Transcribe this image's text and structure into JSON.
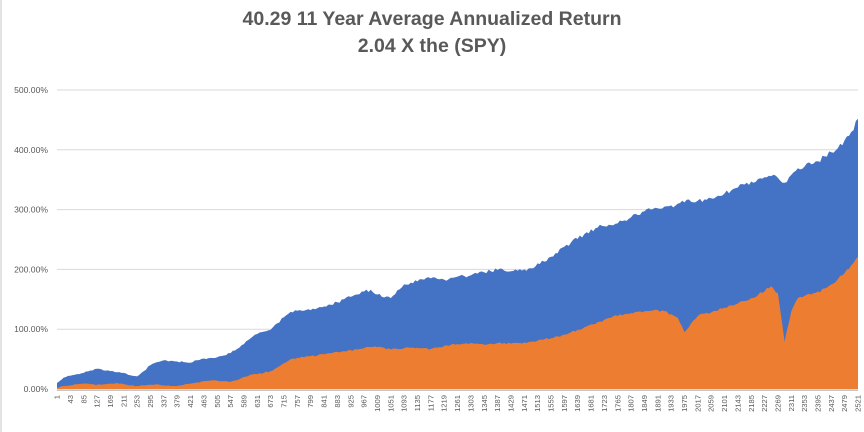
{
  "title": {
    "line1": "40.29 11 Year Average Annualized Return",
    "line2": "2.04 X the (SPY)",
    "color": "#595959"
  },
  "chart_data": {
    "type": "area",
    "title": "40.29 11 Year Average Annualized Return",
    "subtitle": "2.04 X the (SPY)",
    "legend": "none",
    "grid": true,
    "ylim": [
      0,
      500
    ],
    "y_tick_labels": [
      "0.00%",
      "100.00%",
      "200.00%",
      "300.00%",
      "400.00%",
      "500.00%"
    ],
    "x_tick_labels": [
      1,
      43,
      85,
      127,
      169,
      211,
      253,
      295,
      337,
      379,
      421,
      463,
      505,
      547,
      589,
      631,
      673,
      715,
      757,
      799,
      841,
      883,
      925,
      967,
      1009,
      1051,
      1093,
      1135,
      1177,
      1219,
      1261,
      1303,
      1345,
      1387,
      1429,
      1471,
      1513,
      1555,
      1597,
      1639,
      1681,
      1723,
      1765,
      1807,
      1849,
      1891,
      1933,
      1975,
      2017,
      2059,
      2101,
      2143,
      2185,
      2227,
      2269,
      2311,
      2353,
      2395,
      2437,
      2479,
      2521
    ],
    "x": [
      1,
      22,
      43,
      64,
      85,
      106,
      127,
      148,
      169,
      190,
      211,
      232,
      253,
      274,
      295,
      316,
      337,
      358,
      379,
      400,
      421,
      442,
      463,
      484,
      505,
      526,
      547,
      568,
      589,
      610,
      631,
      652,
      673,
      694,
      715,
      736,
      757,
      778,
      799,
      820,
      841,
      862,
      883,
      904,
      925,
      946,
      967,
      988,
      1009,
      1030,
      1051,
      1072,
      1093,
      1114,
      1135,
      1156,
      1177,
      1198,
      1219,
      1240,
      1261,
      1282,
      1303,
      1324,
      1345,
      1366,
      1387,
      1408,
      1429,
      1450,
      1471,
      1492,
      1513,
      1534,
      1555,
      1576,
      1597,
      1618,
      1639,
      1660,
      1681,
      1702,
      1723,
      1744,
      1765,
      1786,
      1807,
      1828,
      1849,
      1870,
      1891,
      1912,
      1933,
      1954,
      1975,
      1996,
      2017,
      2038,
      2059,
      2080,
      2101,
      2122,
      2143,
      2164,
      2185,
      2206,
      2227,
      2248,
      2269,
      2290,
      2311,
      2332,
      2353,
      2374,
      2395,
      2416,
      2437,
      2458,
      2479,
      2500,
      2521
    ],
    "series": [
      {
        "name": "blue-series",
        "color": "#4472C4",
        "values_pct": [
          10,
          19,
          22,
          25,
          27,
          31,
          34,
          31,
          30,
          28,
          27,
          23,
          21,
          30,
          40,
          45,
          48,
          47,
          46,
          45,
          44,
          48,
          51,
          52,
          53,
          56,
          60,
          67,
          75,
          85,
          92,
          96,
          99,
          110,
          120,
          129,
          131,
          131,
          132,
          135,
          138,
          141,
          145,
          150,
          154,
          158,
          163,
          166,
          158,
          153,
          152,
          165,
          175,
          178,
          180,
          183,
          185,
          184,
          183,
          186,
          188,
          189,
          190,
          193,
          195,
          197,
          199,
          198,
          197,
          198,
          200,
          202,
          210,
          213,
          221,
          227,
          238,
          245,
          251,
          259,
          267,
          270,
          272,
          274,
          277,
          282,
          287,
          291,
          297,
          300,
          302,
          305,
          307,
          310,
          312,
          313,
          315,
          317,
          319,
          323,
          327,
          332,
          337,
          342,
          347,
          351,
          354,
          356,
          353,
          345,
          358,
          369,
          372,
          376,
          381,
          389,
          396,
          403,
          416,
          430,
          452
        ]
      },
      {
        "name": "orange-series",
        "color": "#ED7D31",
        "values_pct": [
          2,
          5,
          6,
          8,
          9,
          8,
          7,
          8,
          9,
          10,
          8,
          6,
          5,
          6,
          7,
          8,
          6,
          5,
          5,
          7,
          9,
          11,
          13,
          14,
          14,
          13,
          12,
          15,
          20,
          24,
          25,
          27,
          30,
          36,
          43,
          50,
          52,
          53,
          55,
          56,
          58,
          60,
          62,
          63,
          65,
          66,
          68,
          70,
          70,
          69,
          66,
          67,
          68,
          69,
          69,
          68,
          67,
          69,
          72,
          74,
          75,
          76,
          77,
          76,
          74,
          76,
          77,
          77,
          76,
          77,
          78,
          79,
          81,
          83,
          85,
          88,
          91,
          95,
          99,
          103,
          108,
          112,
          116,
          119,
          122,
          125,
          127,
          129,
          130,
          131,
          132,
          130,
          125,
          119,
          95,
          110,
          122,
          126,
          128,
          131,
          136,
          140,
          143,
          147,
          152,
          157,
          163,
          172,
          160,
          79,
          130,
          152,
          156,
          158,
          163,
          168,
          175,
          184,
          194,
          207,
          221
        ]
      }
    ],
    "colors": {
      "gridline": "#D9D9D9",
      "axis_line": "#C6C6C6",
      "axis_labels": "#595959",
      "plot_background": "#FFFFFF"
    }
  }
}
